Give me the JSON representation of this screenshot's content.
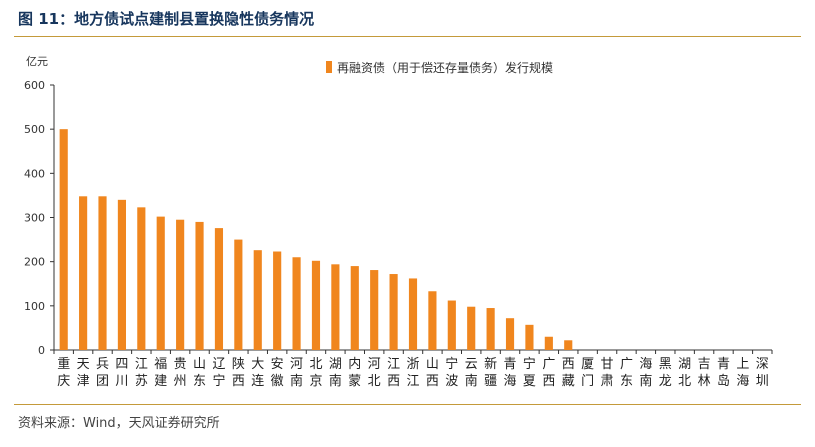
{
  "figure": {
    "title": "图 11：地方债试点建制县置换隐性债务情况",
    "source": "资料来源：Wind，天风证券研究所"
  },
  "colors": {
    "bar": "#f0861e",
    "title": "#17365d",
    "rule": "#c49a3a",
    "axis": "#333333"
  },
  "chart_data": {
    "type": "bar",
    "ylabel": "亿元",
    "ylim": [
      0,
      600
    ],
    "yticks": [
      0,
      100,
      200,
      300,
      400,
      500,
      600
    ],
    "legend": {
      "position": "top",
      "label": "再融资债（用于偿还存量债务）发行规模"
    },
    "grid": false,
    "categories": [
      [
        "重",
        "庆"
      ],
      [
        "天",
        "津"
      ],
      [
        "兵",
        "团"
      ],
      [
        "四",
        "川"
      ],
      [
        "江",
        "苏"
      ],
      [
        "福",
        "建"
      ],
      [
        "贵",
        "州"
      ],
      [
        "山",
        "东"
      ],
      [
        "辽",
        "宁"
      ],
      [
        "陕",
        "西"
      ],
      [
        "大",
        "连"
      ],
      [
        "安",
        "徽"
      ],
      [
        "河",
        "南"
      ],
      [
        "北",
        "京"
      ],
      [
        "湖",
        "南"
      ],
      [
        "内",
        "蒙"
      ],
      [
        "河",
        "北"
      ],
      [
        "江",
        "西"
      ],
      [
        "浙",
        "江"
      ],
      [
        "山",
        "西"
      ],
      [
        "宁",
        "波"
      ],
      [
        "云",
        "南"
      ],
      [
        "新",
        "疆"
      ],
      [
        "青",
        "海"
      ],
      [
        "宁",
        "夏"
      ],
      [
        "广",
        "西"
      ],
      [
        "西",
        "藏"
      ],
      [
        "厦",
        "门"
      ],
      [
        "甘",
        "肃"
      ],
      [
        "广",
        "东"
      ],
      [
        "海",
        "南"
      ],
      [
        "黑",
        "龙"
      ],
      [
        "湖",
        "北"
      ],
      [
        "吉",
        "林"
      ],
      [
        "青",
        "岛"
      ],
      [
        "上",
        "海"
      ],
      [
        "深",
        "圳"
      ]
    ],
    "series": [
      {
        "name": "再融资债（用于偿还存量债务）发行规模",
        "values": [
          500,
          348,
          348,
          340,
          323,
          302,
          295,
          290,
          276,
          250,
          226,
          223,
          210,
          202,
          194,
          190,
          181,
          172,
          162,
          133,
          112,
          98,
          95,
          72,
          57,
          30,
          22,
          0,
          0,
          0,
          0,
          0,
          0,
          0,
          0,
          0,
          0
        ]
      }
    ]
  }
}
